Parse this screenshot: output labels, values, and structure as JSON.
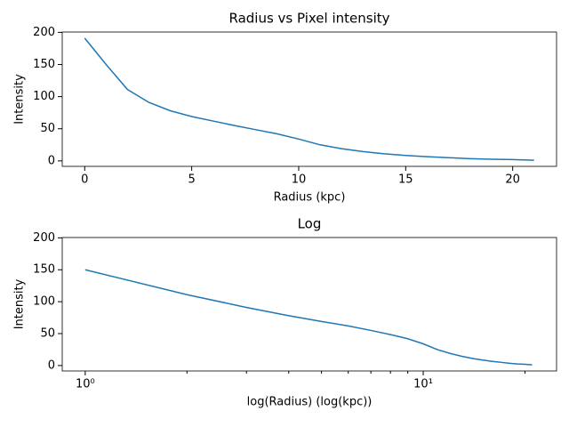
{
  "chart_data": [
    {
      "type": "line",
      "title": "Radius vs Pixel intensity",
      "x_label": "Radius (kpc)",
      "y_label": "Intensity",
      "x": [
        0,
        1,
        2,
        3,
        4,
        5,
        6,
        7,
        8,
        9,
        10,
        11,
        12,
        13,
        14,
        15,
        16,
        17,
        18,
        19,
        20,
        21
      ],
      "series": [
        {
          "color": "#1f77b4",
          "values": [
            191,
            150,
            111,
            91,
            78,
            69,
            62,
            55,
            48.5,
            42,
            34,
            25,
            19,
            14.5,
            11,
            8.5,
            6.5,
            5,
            3.5,
            2.5,
            2,
            1
          ]
        }
      ],
      "xscale": "linear",
      "xlim": [
        -1.05,
        22.05
      ],
      "xticks": [
        0,
        5,
        10,
        15,
        20
      ],
      "ylim": [
        -8.5,
        200.5
      ],
      "yticks": [
        0,
        50,
        100,
        150,
        200
      ]
    },
    {
      "type": "line",
      "title": "Log",
      "x_label": "log(Radius) (log(kpc))",
      "y_label": "Intensity",
      "x": [
        1,
        2,
        3,
        4,
        5,
        6,
        7,
        8,
        9,
        10,
        11,
        12,
        13,
        14,
        15,
        16,
        17,
        18,
        19,
        20,
        21
      ],
      "series": [
        {
          "color": "#1f77b4",
          "values": [
            150,
            111,
            91,
            78,
            69,
            62,
            55,
            48.5,
            42,
            34,
            25,
            19,
            14.5,
            11,
            8.5,
            6.5,
            5,
            3.5,
            2.5,
            2,
            1
          ]
        }
      ],
      "xscale": "log",
      "xlim": [
        0.855,
        24.8
      ],
      "xticks": [
        {
          "value": 1,
          "label": "10⁰"
        },
        {
          "value": 10,
          "label": "10¹"
        }
      ],
      "xminor_ticks": [
        2,
        3,
        4,
        5,
        6,
        7,
        8,
        9,
        20
      ],
      "ylim": [
        -8.5,
        200.5
      ],
      "yticks": [
        0,
        50,
        100,
        150,
        200
      ]
    }
  ]
}
